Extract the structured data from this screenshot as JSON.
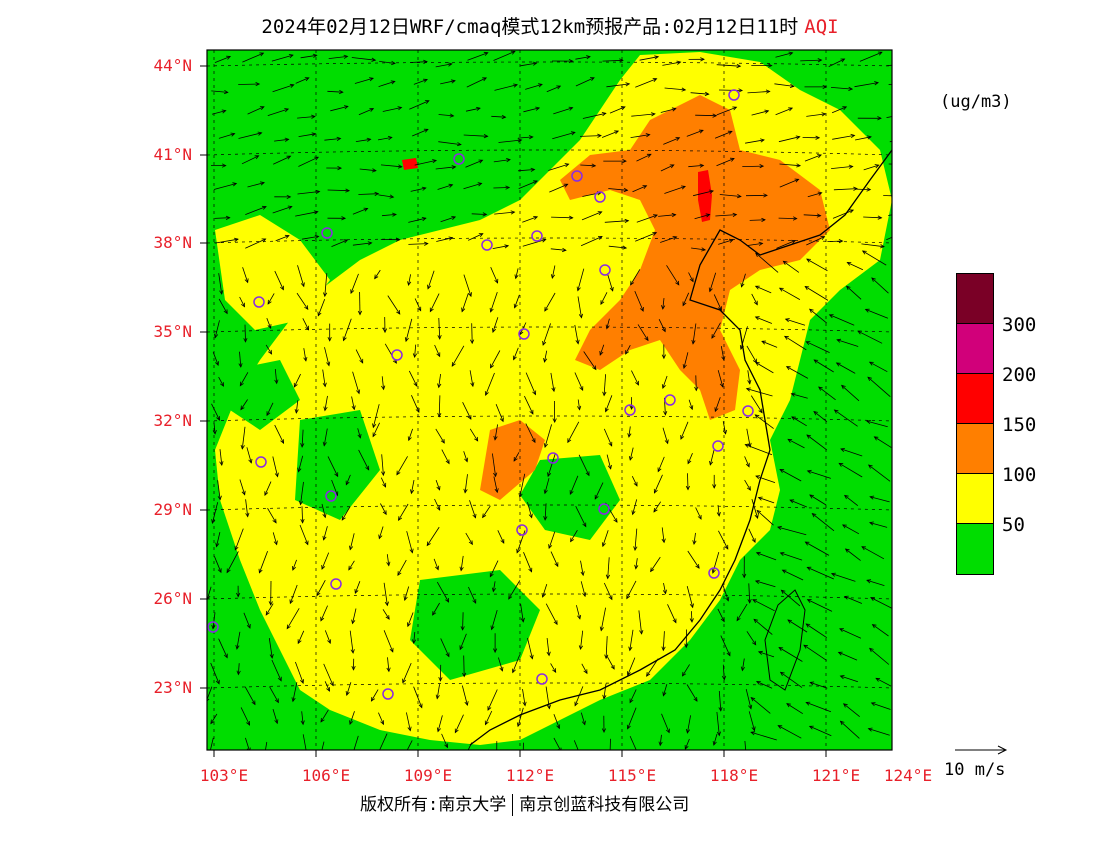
{
  "title": "2024年02月12日WRF/cmaq模式12km预报产品:02月12日11时",
  "title_species": "AQI",
  "unit": "(ug/m3)",
  "lat_labels": [
    "44°N",
    "41°N",
    "38°N",
    "35°N",
    "32°N",
    "29°N",
    "26°N",
    "23°N"
  ],
  "lon_labels": [
    "103°E",
    "106°E",
    "109°E",
    "112°E",
    "115°E",
    "118°E",
    "121°E",
    "124°E"
  ],
  "colorbar": {
    "levels": [
      "300",
      "200",
      "150",
      "100",
      "50"
    ],
    "colors": [
      "#7a0026",
      "#d1007a",
      "#ff0000",
      "#ff7f00",
      "#ffff00",
      "#00dd00"
    ]
  },
  "vector_scale": "10 m/s",
  "footer": {
    "left": "版权所有:南京大学",
    "right": "南京创蓝科技有限公司"
  }
}
